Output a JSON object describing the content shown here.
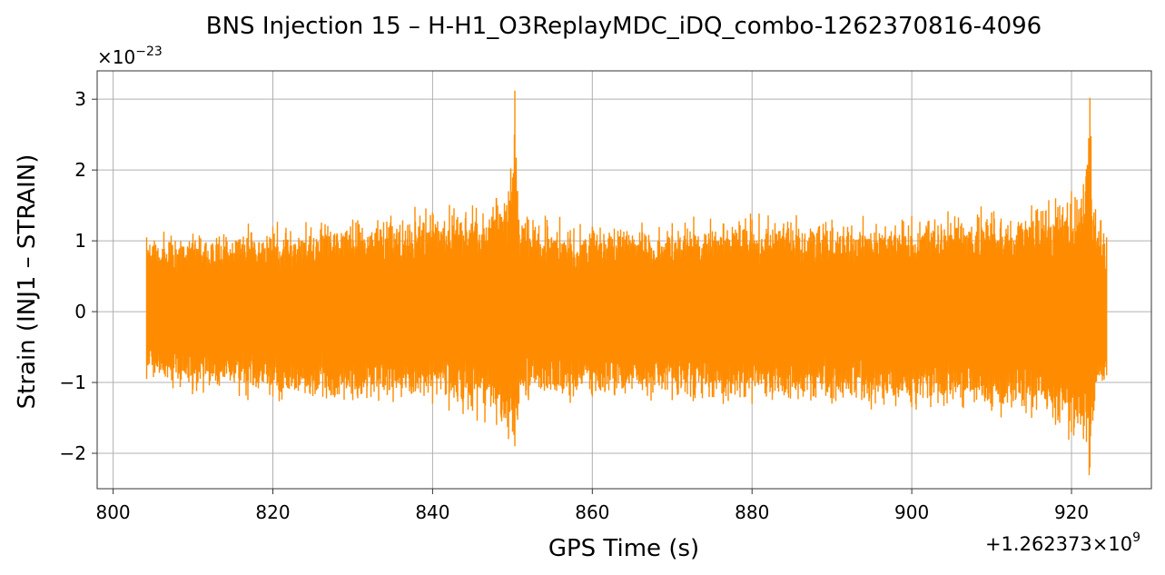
{
  "chart_data": {
    "type": "line",
    "title": "BNS Injection 15 – H-H1_O3ReplayMDC_iDQ_combo-1262370816-4096",
    "xlabel": "GPS Time (s)",
    "ylabel": "Strain (INJ1 – STRAIN)",
    "y_multiplier_label": "×10",
    "y_multiplier_exp": "−23",
    "x_offset_label": "+1.262373×10",
    "x_offset_exp": "9",
    "xlim": [
      798,
      930
    ],
    "ylim": [
      -2.5,
      3.4
    ],
    "x_ticks": [
      800,
      820,
      840,
      860,
      880,
      900,
      920
    ],
    "x_tick_labels": [
      "800",
      "820",
      "840",
      "860",
      "880",
      "900",
      "920"
    ],
    "y_ticks": [
      -2,
      -1,
      0,
      1,
      2,
      3
    ],
    "y_tick_labels": [
      "−2",
      "−1",
      "0",
      "1",
      "2",
      "3"
    ],
    "grid": true,
    "series": [
      {
        "color": "#ff8c00",
        "x_start": 804.2,
        "x_end": 924.4,
        "envelope": {
          "x": [
            804.2,
            810,
            820,
            830,
            840,
            845,
            848,
            849.5,
            850.3,
            850.8,
            852,
            860,
            870,
            880,
            890,
            900,
            910,
            915,
            918,
            920,
            921.5,
            922.3,
            922.8,
            924.4
          ],
          "upper": [
            1.05,
            1.1,
            1.2,
            1.3,
            1.4,
            1.5,
            1.6,
            1.7,
            3.12,
            1.3,
            1.3,
            1.2,
            1.25,
            1.3,
            1.3,
            1.35,
            1.4,
            1.5,
            1.6,
            1.7,
            1.8,
            3.02,
            1.4,
            1.05
          ],
          "lower": [
            -0.95,
            -1.1,
            -1.2,
            -1.25,
            -1.3,
            -1.4,
            -1.6,
            -1.8,
            -1.9,
            -1.3,
            -1.25,
            -1.2,
            -1.25,
            -1.3,
            -1.3,
            -1.35,
            -1.4,
            -1.5,
            -1.6,
            -1.7,
            -1.8,
            -2.2,
            -1.4,
            -0.9
          ]
        }
      }
    ]
  }
}
